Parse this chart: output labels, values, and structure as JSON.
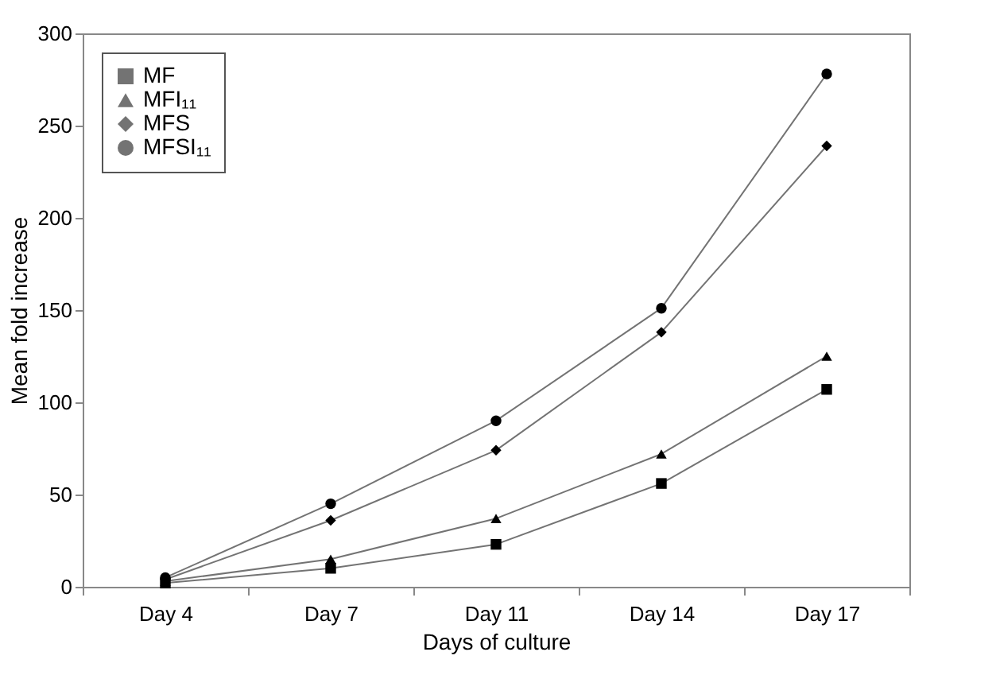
{
  "chart_data": {
    "type": "line",
    "xlabel": "Days of culture",
    "ylabel": "Mean fold increase",
    "categories": [
      "Day 4",
      "Day 7",
      "Day 11",
      "Day 14",
      "Day 17"
    ],
    "ylim": [
      0,
      300
    ],
    "yticks": [
      0,
      50,
      100,
      150,
      200,
      250,
      300
    ],
    "grid": false,
    "legend": "top left",
    "series": [
      {
        "name": "MF",
        "color": "#000000",
        "marker": "square",
        "values": [
          2,
          10,
          23,
          56,
          107
        ]
      },
      {
        "name": "MFI₁₁",
        "color": "#000000",
        "marker": "triangle",
        "values": [
          3,
          15,
          37,
          72,
          125
        ]
      },
      {
        "name": "MFS",
        "color": "#000000",
        "marker": "diamond",
        "values": [
          4,
          36,
          74,
          138,
          239
        ]
      },
      {
        "name": "MFSI₁₁",
        "color": "#000000",
        "marker": "circle",
        "values": [
          5,
          45,
          90,
          151,
          278
        ]
      }
    ]
  }
}
